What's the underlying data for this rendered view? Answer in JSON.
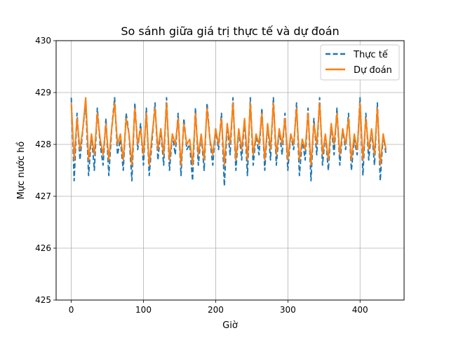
{
  "chart_data": {
    "type": "line",
    "title": "So sánh giữa giá trị thực tế và dự đoán",
    "xlabel": "Giờ",
    "ylabel": "Mực nước hồ",
    "xlim": [
      -21,
      461
    ],
    "ylim": [
      425,
      430
    ],
    "x_ticks": [
      0,
      100,
      200,
      300,
      400
    ],
    "y_ticks": [
      425,
      426,
      427,
      428,
      429,
      430
    ],
    "x_tick_labels": [
      "0",
      "100",
      "200",
      "300",
      "400"
    ],
    "y_tick_labels": [
      "425",
      "426",
      "427",
      "428",
      "429",
      "430"
    ],
    "grid": true,
    "legend_position": "top-right",
    "series": [
      {
        "name": "Thực tế",
        "color": "#1f77b4",
        "style": "dashed",
        "x_start": 0,
        "x_step": 4,
        "values": [
          428.9,
          427.3,
          428.6,
          427.7,
          428.3,
          428.8,
          427.4,
          428.2,
          427.5,
          428.7,
          428.0,
          427.6,
          428.5,
          427.4,
          428.3,
          428.9,
          427.8,
          428.1,
          427.5,
          428.6,
          428.2,
          427.3,
          428.8,
          427.9,
          428.4,
          427.6,
          428.7,
          427.4,
          428.1,
          428.8,
          427.7,
          428.3,
          427.6,
          428.9,
          427.5,
          428.2,
          427.8,
          428.6,
          427.4,
          428.5,
          427.9,
          428.0,
          427.3,
          428.7,
          427.6,
          428.2,
          427.5,
          428.8,
          428.1,
          427.6,
          428.3,
          427.9,
          428.6,
          427.2,
          428.4,
          427.8,
          428.9,
          427.5,
          428.3,
          427.7,
          428.5,
          427.4,
          428.9,
          427.6,
          428.2,
          427.8,
          428.7,
          427.5,
          428.4,
          427.7,
          428.9,
          427.6,
          428.3,
          427.8,
          428.6,
          427.5,
          428.2,
          427.9,
          428.8,
          427.4,
          428.1,
          427.7,
          428.7,
          427.3,
          428.5,
          427.8,
          428.9,
          427.6,
          428.2,
          427.5,
          428.4,
          427.8,
          428.7,
          427.6,
          428.3,
          427.9,
          428.6,
          427.5,
          428.1,
          427.8,
          428.9,
          427.4,
          428.6,
          427.7,
          428.3,
          427.6,
          428.8,
          427.3,
          428.2,
          427.8
        ]
      },
      {
        "name": "Dự đoán",
        "color": "#ff7f0e",
        "style": "solid",
        "x_start": 0,
        "x_step": 4,
        "values": [
          428.8,
          427.7,
          428.5,
          427.9,
          428.3,
          428.9,
          427.7,
          428.2,
          427.8,
          428.6,
          428.1,
          427.8,
          428.4,
          427.7,
          428.3,
          428.8,
          428.0,
          428.2,
          427.7,
          428.5,
          428.2,
          427.6,
          428.7,
          428.0,
          428.3,
          427.8,
          428.6,
          427.6,
          428.2,
          428.7,
          427.9,
          428.3,
          427.8,
          428.8,
          427.7,
          428.2,
          428.0,
          428.5,
          427.6,
          428.4,
          428.0,
          428.1,
          427.6,
          428.6,
          427.8,
          428.2,
          427.7,
          428.7,
          428.1,
          427.8,
          428.3,
          428.0,
          428.5,
          427.6,
          428.4,
          428.0,
          428.8,
          427.7,
          428.3,
          427.9,
          428.5,
          427.7,
          428.8,
          427.8,
          428.2,
          428.0,
          428.6,
          427.7,
          428.4,
          427.9,
          428.8,
          427.8,
          428.3,
          428.0,
          428.5,
          427.7,
          428.2,
          428.0,
          428.7,
          427.7,
          428.1,
          427.9,
          428.6,
          427.6,
          428.4,
          428.0,
          428.8,
          427.8,
          428.2,
          427.7,
          428.4,
          428.0,
          428.6,
          427.8,
          428.3,
          428.0,
          428.5,
          427.7,
          428.2,
          427.9,
          428.8,
          427.7,
          428.5,
          427.9,
          428.3,
          427.8,
          428.7,
          427.6,
          428.2,
          427.9
        ]
      }
    ]
  }
}
